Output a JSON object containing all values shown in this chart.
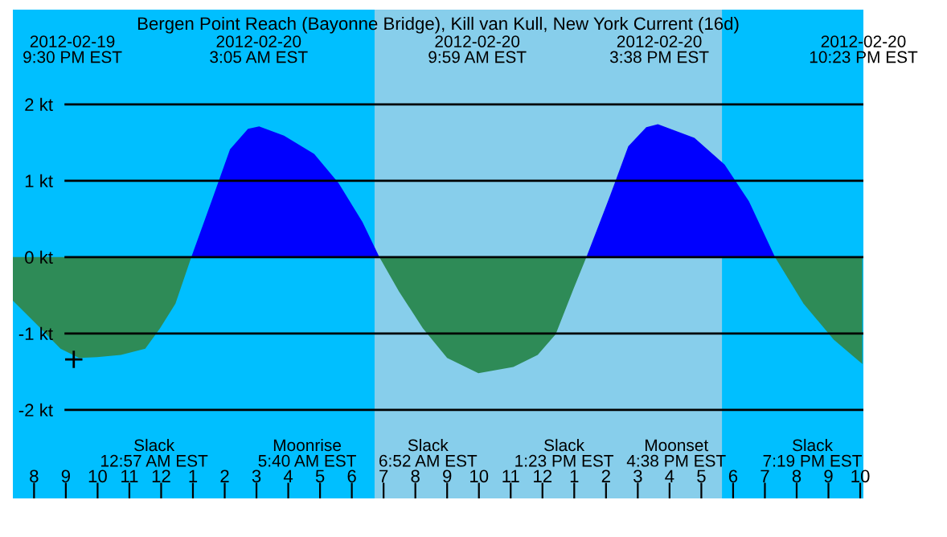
{
  "chart_data": {
    "type": "area",
    "title": "Bergen Point Reach (Bayonne Bridge), Kill van Kull, New York Current (16d)",
    "xlim": [
      "2012-02-19T19:20",
      "2012-02-20T22:06"
    ],
    "ylim": [
      -3.16,
      3.24
    ],
    "xticks": [
      {
        "value": "2012-02-19T20:00",
        "label": "8"
      },
      {
        "value": "2012-02-19T21:00",
        "label": "9"
      },
      {
        "value": "2012-02-19T22:00",
        "label": "10"
      },
      {
        "value": "2012-02-19T23:00",
        "label": "11"
      },
      {
        "value": "2012-02-20T00:00",
        "label": "12"
      },
      {
        "value": "2012-02-20T01:00",
        "label": "1"
      },
      {
        "value": "2012-02-20T02:00",
        "label": "2"
      },
      {
        "value": "2012-02-20T03:00",
        "label": "3"
      },
      {
        "value": "2012-02-20T04:00",
        "label": "4"
      },
      {
        "value": "2012-02-20T05:00",
        "label": "5"
      },
      {
        "value": "2012-02-20T06:00",
        "label": "6"
      },
      {
        "value": "2012-02-20T07:00",
        "label": "7"
      },
      {
        "value": "2012-02-20T08:00",
        "label": "8"
      },
      {
        "value": "2012-02-20T09:00",
        "label": "9"
      },
      {
        "value": "2012-02-20T10:00",
        "label": "10"
      },
      {
        "value": "2012-02-20T11:00",
        "label": "11"
      },
      {
        "value": "2012-02-20T12:00",
        "label": "12"
      },
      {
        "value": "2012-02-20T13:00",
        "label": "1"
      },
      {
        "value": "2012-02-20T14:00",
        "label": "2"
      },
      {
        "value": "2012-02-20T15:00",
        "label": "3"
      },
      {
        "value": "2012-02-20T16:00",
        "label": "4"
      },
      {
        "value": "2012-02-20T17:00",
        "label": "5"
      },
      {
        "value": "2012-02-20T18:00",
        "label": "6"
      },
      {
        "value": "2012-02-20T19:00",
        "label": "7"
      },
      {
        "value": "2012-02-20T20:00",
        "label": "8"
      },
      {
        "value": "2012-02-20T21:00",
        "label": "9"
      },
      {
        "value": "2012-02-20T22:00",
        "label": "10"
      }
    ],
    "yticks": [
      {
        "value": -2,
        "label": "-2 kt"
      },
      {
        "value": -1,
        "label": "-1 kt"
      },
      {
        "value": 0,
        "label": "0 kt"
      },
      {
        "value": 1,
        "label": "1 kt"
      },
      {
        "value": 2,
        "label": "2 kt"
      }
    ],
    "grid": "y",
    "bands": [
      {
        "axis": "x",
        "from": "2012-02-19T19:20",
        "to": "2012-02-20T22:06",
        "color": "#00bfff"
      },
      {
        "axis": "x",
        "from": "2012-02-20T06:43",
        "to": "2012-02-20T17:39",
        "color": "#87ceeb"
      }
    ],
    "series": [
      {
        "color": "#2e8b57",
        "x": [
          "2012-02-19T19:20",
          "2012-02-19T20:05",
          "2012-02-19T20:50",
          "2012-02-19T21:25",
          "2012-02-19T21:59",
          "2012-02-19T22:44",
          "2012-02-19T23:30",
          "2012-02-19T23:58",
          "2012-02-20T00:27",
          "2012-02-20T00:57"
        ],
        "values": [
          -0.57,
          -0.88,
          -1.2,
          -1.32,
          -1.31,
          -1.28,
          -1.2,
          -0.93,
          -0.61,
          0
        ]
      },
      {
        "color": "#0000ff",
        "x": [
          "2012-02-20T00:57",
          "2012-02-20T01:35",
          "2012-02-20T02:10",
          "2012-02-20T02:44",
          "2012-02-20T03:05",
          "2012-02-20T03:52",
          "2012-02-20T04:49",
          "2012-02-20T05:35",
          "2012-02-20T06:20",
          "2012-02-20T06:52"
        ],
        "values": [
          0,
          0.73,
          1.41,
          1.68,
          1.71,
          1.59,
          1.35,
          0.97,
          0.46,
          0
        ]
      },
      {
        "color": "#2e8b57",
        "x": [
          "2012-02-20T06:52",
          "2012-02-20T07:29",
          "2012-02-20T08:14",
          "2012-02-20T09:00",
          "2012-02-20T09:59",
          "2012-02-20T11:05",
          "2012-02-20T11:51",
          "2012-02-20T12:25",
          "2012-02-20T12:59",
          "2012-02-20T13:23"
        ],
        "values": [
          0,
          -0.45,
          -0.93,
          -1.32,
          -1.52,
          -1.44,
          -1.28,
          -1.01,
          -0.41,
          0
        ]
      },
      {
        "color": "#0000ff",
        "x": [
          "2012-02-20T13:23",
          "2012-02-20T14:08",
          "2012-02-20T14:42",
          "2012-02-20T15:16",
          "2012-02-20T15:38",
          "2012-02-20T16:47",
          "2012-02-20T17:44",
          "2012-02-20T18:30",
          "2012-02-20T19:19"
        ],
        "values": [
          0,
          0.81,
          1.45,
          1.7,
          1.74,
          1.56,
          1.21,
          0.73,
          0
        ]
      },
      {
        "color": "#2e8b57",
        "x": [
          "2012-02-20T19:19",
          "2012-02-20T20:13",
          "2012-02-20T21:10",
          "2012-02-20T22:04"
        ],
        "values": [
          0,
          -0.61,
          -1.08,
          -1.4
        ]
      },
      {
        "type": "scatter",
        "marker": "cross",
        "color": "#000000",
        "x": [
          "2012-02-19T21:15"
        ],
        "values": [
          -1.34
        ]
      }
    ],
    "annotations": [
      "2012-02-19\n9:30 PM EST",
      "2012-02-20\n3:05 AM EST",
      "2012-02-20\n9:59 AM EST",
      "2012-02-20\n3:38 PM EST",
      "2012-02-20\n10:23 PM EST",
      "Slack\n12:57 AM EST",
      "Moonrise\n5:40 AM EST",
      "Slack\n6:52 AM EST",
      "Slack\n1:23 PM EST",
      "Moonset\n4:38 PM EST",
      "Slack\n7:19 PM EST"
    ]
  }
}
